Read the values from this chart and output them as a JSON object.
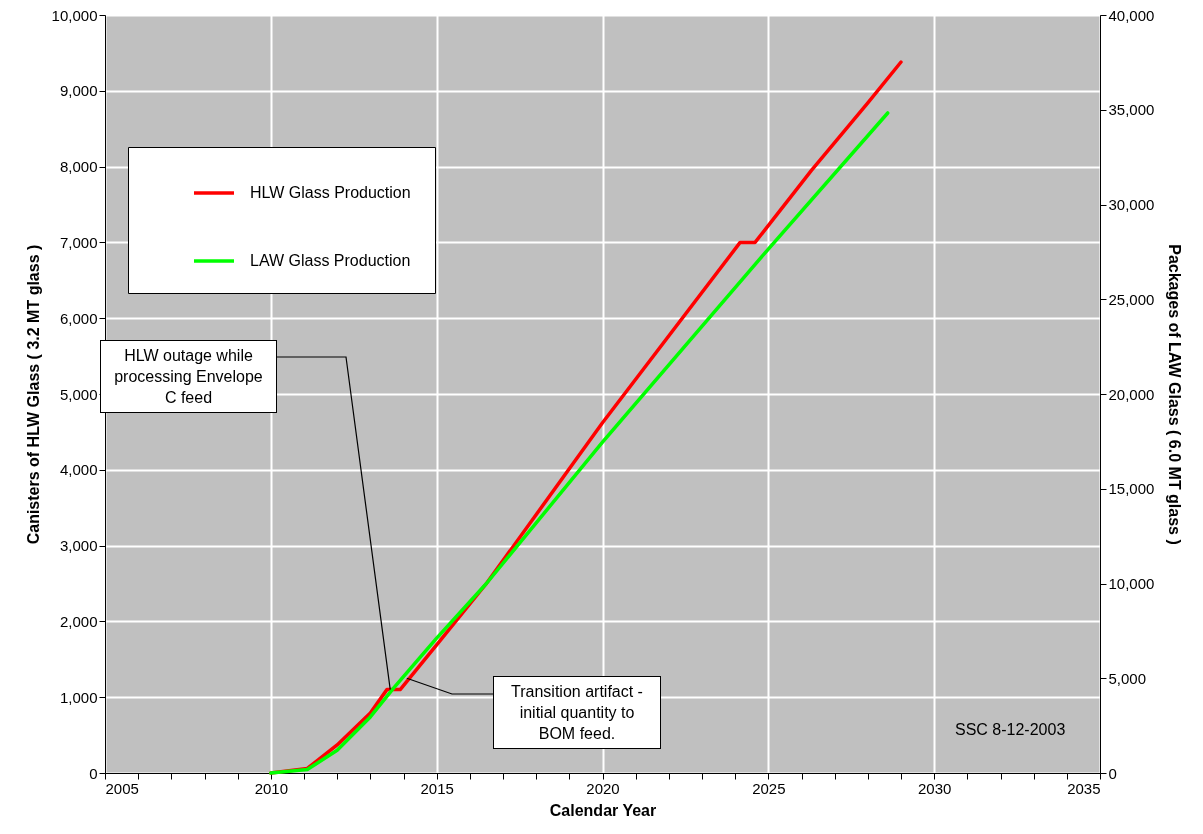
{
  "chart_data": {
    "type": "line",
    "xlabel": "Calendar Year",
    "ylabel": "Canisters of HLW Glass ( 3.2 MT glass )",
    "y2label": "Packages of LAW Glass ( 6.0 MT glass )",
    "series": [
      {
        "name": "HLW Glass Production",
        "color": "#ff0000",
        "x": [
          2010,
          2011.1,
          2012,
          2013,
          2013.5,
          2013.9,
          2015,
          2016.5,
          2020,
          2024.15,
          2024.6,
          2026.3,
          2028,
          2029
        ],
        "values": [
          0,
          60,
          370,
          790,
          1100,
          1100,
          1690,
          2500,
          4620,
          7000,
          7000,
          7950,
          8840,
          9380
        ]
      },
      {
        "name": "LAW Glass Production",
        "color": "#00ff00",
        "axis": "y2",
        "x": [
          2010,
          2011.1,
          2012,
          2013,
          2013.7,
          2015,
          2016.5,
          2020,
          2025,
          2028.6
        ],
        "values": [
          0,
          180,
          1200,
          2960,
          4480,
          7120,
          10000,
          17460,
          27650,
          34830
        ]
      }
    ],
    "xlim": [
      2005,
      2035
    ],
    "xticks": [
      2005,
      {
        "value": 2006,
        "label": null
      },
      {
        "value": 2007,
        "label": null
      },
      {
        "value": 2008,
        "label": null
      },
      {
        "value": 2009,
        "label": null
      },
      2010,
      {
        "value": 2011,
        "label": null
      },
      {
        "value": 2012,
        "label": null
      },
      {
        "value": 2013,
        "label": null
      },
      {
        "value": 2014,
        "label": null
      },
      2015,
      {
        "value": 2016,
        "label": null
      },
      {
        "value": 2017,
        "label": null
      },
      {
        "value": 2018,
        "label": null
      },
      {
        "value": 2019,
        "label": null
      },
      2020,
      {
        "value": 2021,
        "label": null
      },
      {
        "value": 2022,
        "label": null
      },
      {
        "value": 2023,
        "label": null
      },
      {
        "value": 2024,
        "label": null
      },
      2025,
      {
        "value": 2026,
        "label": null
      },
      {
        "value": 2027,
        "label": null
      },
      {
        "value": 2028,
        "label": null
      },
      {
        "value": 2029,
        "label": null
      },
      2030,
      {
        "value": 2031,
        "label": null
      },
      {
        "value": 2032,
        "label": null
      },
      {
        "value": 2033,
        "label": null
      },
      {
        "value": 2034,
        "label": null
      },
      2035
    ],
    "ylim": [
      0,
      10000
    ],
    "yticks": [
      0,
      {
        "value": 1000,
        "label": "1,000"
      },
      {
        "value": 2000,
        "label": "2,000"
      },
      {
        "value": 3000,
        "label": "3,000"
      },
      {
        "value": 4000,
        "label": "4,000"
      },
      {
        "value": 5000,
        "label": "5,000"
      },
      {
        "value": 6000,
        "label": "6,000"
      },
      {
        "value": 7000,
        "label": "7,000"
      },
      {
        "value": 8000,
        "label": "8,000"
      },
      {
        "value": 9000,
        "label": "9,000"
      },
      {
        "value": 10000,
        "label": "10,000"
      }
    ],
    "y2lim": [
      0,
      40000
    ],
    "y2ticks": [
      0,
      {
        "value": 5000,
        "label": "5,000"
      },
      {
        "value": 10000,
        "label": "10,000"
      },
      {
        "value": 15000,
        "label": "15,000"
      },
      {
        "value": 20000,
        "label": "20,000"
      },
      {
        "value": 25000,
        "label": "25,000"
      },
      {
        "value": 30000,
        "label": "30,000"
      },
      {
        "value": 35000,
        "label": "35,000"
      },
      {
        "value": 40000,
        "label": "40,000"
      }
    ],
    "grid": true,
    "legend": "top left",
    "line_style": "solid",
    "annotations": [
      {
        "text": "HLW outage while processing Envelope C feed",
        "x": 2013.6,
        "y": 1100
      },
      {
        "text": "Transition artifact - initial quantity to BOM feed.",
        "x": 2014.1,
        "y": 1250
      },
      "SSC 8-12-2003"
    ]
  }
}
